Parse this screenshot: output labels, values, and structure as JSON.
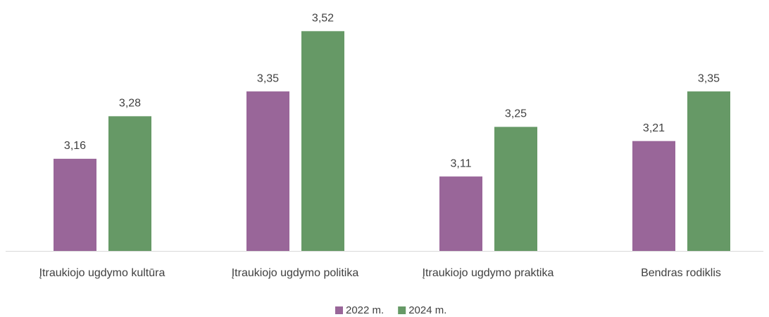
{
  "chart_data": {
    "type": "bar",
    "categories": [
      "Įtraukiojo ugdymo kultūra",
      "Įtraukiojo ugdymo politika",
      "Įtraukiojo ugdymo praktika",
      "Bendras rodiklis"
    ],
    "series": [
      {
        "name": "2022 m.",
        "color": "#996699",
        "values": [
          3.16,
          3.35,
          3.11,
          3.21
        ],
        "value_labels": [
          "3,16",
          "3,35",
          "3,11",
          "3,21"
        ]
      },
      {
        "name": "2024 m.",
        "color": "#669966",
        "values": [
          3.28,
          3.52,
          3.25,
          3.35
        ],
        "value_labels": [
          "3,28",
          "3,52",
          "3,25",
          "3,35"
        ]
      }
    ],
    "ylim": [
      2.9,
      3.6
    ]
  }
}
